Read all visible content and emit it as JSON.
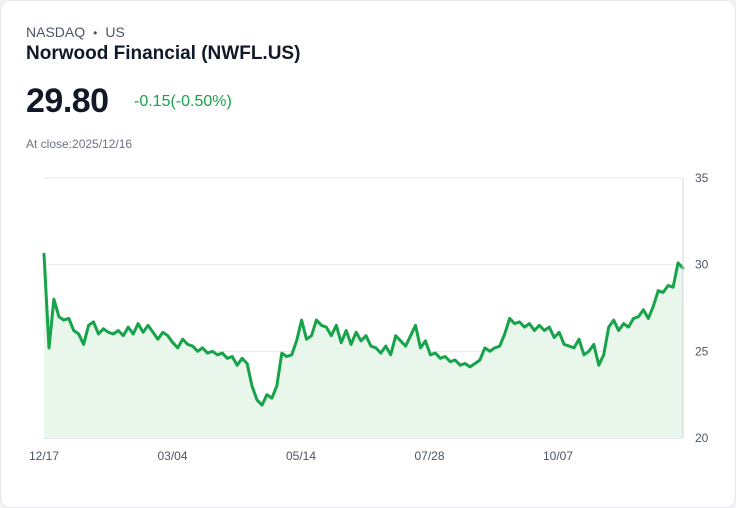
{
  "header": {
    "exchange": "NASDAQ",
    "region": "US",
    "name": "Norwood Financial (NWFL.US)",
    "price": "29.80",
    "change": "-0.15(-0.50%)",
    "close_label": "At close:2025/12/16"
  },
  "colors": {
    "line": "#16a34a",
    "fill": "#e8f6ec",
    "grid": "#e5e7eb",
    "change": "#16a34a"
  },
  "chart_data": {
    "type": "area",
    "x_tick_labels": [
      "12/17",
      "03/04",
      "05/14",
      "07/28",
      "10/07"
    ],
    "y_ticks": [
      20,
      25,
      30,
      35
    ],
    "ylim": [
      20,
      35
    ],
    "grid": true,
    "y_axis_position": "right",
    "series": [
      {
        "values": [
          30.6,
          25.2,
          28.0,
          27.0,
          26.8,
          26.9,
          26.2,
          26.0,
          25.4,
          26.5,
          26.7,
          26.0,
          26.3,
          26.1,
          26.0,
          26.2,
          25.9,
          26.4,
          26.0,
          26.6,
          26.1,
          26.5,
          26.1,
          25.7,
          26.1,
          25.9,
          25.5,
          25.2,
          25.7,
          25.4,
          25.3,
          25.0,
          25.2,
          24.9,
          25.0,
          24.8,
          24.9,
          24.6,
          24.7,
          24.2,
          24.6,
          24.3,
          23.0,
          22.2,
          21.9,
          22.5,
          22.3,
          23.0,
          24.9,
          24.7,
          24.8,
          25.6,
          26.8,
          25.7,
          25.9,
          26.8,
          26.5,
          26.4,
          25.9,
          26.5,
          25.5,
          26.2,
          25.4,
          26.1,
          25.6,
          25.9,
          25.3,
          25.2,
          24.9,
          25.3,
          24.8,
          25.9,
          25.6,
          25.3,
          25.9,
          26.5,
          25.2,
          25.6,
          24.8,
          24.9,
          24.6,
          24.7,
          24.4,
          24.5,
          24.2,
          24.3,
          24.1,
          24.3,
          24.5,
          25.2,
          25.0,
          25.2,
          25.3,
          26.0,
          26.9,
          26.6,
          26.7,
          26.4,
          26.6,
          26.2,
          26.5,
          26.2,
          26.4,
          25.8,
          26.1,
          25.4,
          25.3,
          25.2,
          25.7,
          24.8,
          25.0,
          25.4,
          24.2,
          24.8,
          26.4,
          26.8,
          26.2,
          26.6,
          26.4,
          26.9,
          27.0,
          27.4,
          26.9,
          27.6,
          28.5,
          28.4,
          28.8,
          28.7,
          30.1,
          29.8
        ]
      }
    ]
  }
}
